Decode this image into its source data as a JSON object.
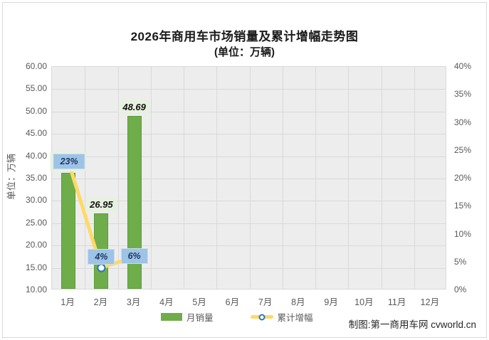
{
  "chart_data": {
    "type": "bar",
    "combo": "bar+line",
    "title": "2026年商用车市场销量及累计增幅走势图",
    "subtitle": "(单位：万辆)",
    "left_axis": {
      "title": "单位：万辆",
      "min": 10,
      "max": 60,
      "ticks": [
        "60.00",
        "55.00",
        "50.00",
        "45.00",
        "40.00",
        "35.00",
        "30.00",
        "25.00",
        "20.00",
        "15.00",
        "10.00"
      ]
    },
    "right_axis": {
      "min": 0,
      "max": 40,
      "unit": "%",
      "ticks": [
        "40%",
        "35%",
        "30%",
        "25%",
        "20%",
        "15%",
        "10%",
        "5%",
        "0%"
      ]
    },
    "categories": [
      "1月",
      "2月",
      "3月",
      "4月",
      "5月",
      "6月",
      "7月",
      "8月",
      "9月",
      "10月",
      "11月",
      "12月"
    ],
    "grid": "horizontal and vertical, light gray on gray plot fill",
    "legend_position": "bottom center",
    "series": [
      {
        "name": "月销量",
        "type": "bar",
        "values": [
          35.9,
          26.95,
          48.69
        ],
        "value_labels": [
          "",
          "26.95",
          "48.69"
        ]
      },
      {
        "name": "累计增幅",
        "type": "line",
        "values_pct": [
          23,
          4,
          6
        ],
        "point_labels": [
          "23%",
          "4%",
          "6%"
        ]
      }
    ],
    "footer": "制图:第一商用车网 cvworld.cn",
    "colors": {
      "bar_fill": "#6fad4b",
      "bar_border": "#5e9a3f",
      "line": "#ffd966",
      "marker_ring": "#2e75b6",
      "marker_fill": "#ffffff",
      "pct_label_bg": "#9dc3e6",
      "pct_label_text": "#1f3864",
      "value_label_bg": "#e7f1df",
      "plot_bg": "#ededed",
      "gridline": "#d9d9d9",
      "axis_text": "#595959"
    }
  }
}
